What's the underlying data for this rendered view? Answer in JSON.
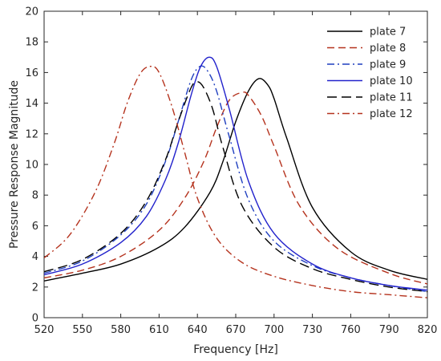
{
  "chart_data": {
    "type": "line",
    "title": "",
    "xlabel": "Frequency [Hz]",
    "ylabel": "Pressure Response Magnitude",
    "xlim": [
      520,
      820
    ],
    "ylim": [
      0,
      20
    ],
    "xticks": [
      "520",
      "550",
      "580",
      "610",
      "640",
      "670",
      "700",
      "730",
      "760",
      "790",
      "820"
    ],
    "yticks": [
      "0",
      "2",
      "4",
      "6",
      "8",
      "10",
      "12",
      "14",
      "16",
      "18",
      "20"
    ],
    "grid": false,
    "legend_position": "top-right",
    "series": [
      {
        "name": "plate 7",
        "color": "#000000",
        "dash": "solid",
        "x": [
          520,
          550,
          580,
          610,
          630,
          650,
          660,
          670,
          680,
          688,
          695,
          700,
          710,
          730,
          760,
          790,
          820
        ],
        "y": [
          2.4,
          2.9,
          3.5,
          4.6,
          5.9,
          8.2,
          10.2,
          12.8,
          14.8,
          15.6,
          15.2,
          14.3,
          11.7,
          7.2,
          4.3,
          3.1,
          2.5
        ]
      },
      {
        "name": "plate 8",
        "color": "#b5331e",
        "dash": "dash",
        "x": [
          520,
          550,
          580,
          610,
          630,
          645,
          655,
          665,
          675,
          680,
          690,
          700,
          720,
          750,
          790,
          820
        ],
        "y": [
          2.6,
          3.1,
          4.0,
          5.7,
          7.8,
          10.2,
          12.4,
          14.2,
          14.7,
          14.5,
          13.2,
          11.2,
          7.3,
          4.5,
          2.9,
          2.2
        ]
      },
      {
        "name": "plate 9",
        "color": "#1f3fbf",
        "dash": "dashdot",
        "x": [
          520,
          550,
          580,
          600,
          615,
          625,
          635,
          642,
          648,
          655,
          665,
          680,
          700,
          730,
          760,
          790,
          820
        ],
        "y": [
          2.9,
          3.7,
          5.4,
          7.4,
          10.2,
          12.8,
          15.5,
          16.4,
          16.1,
          14.8,
          11.8,
          7.7,
          5.0,
          3.4,
          2.6,
          2.1,
          1.7
        ]
      },
      {
        "name": "plate 10",
        "color": "#2222cc",
        "dash": "solid",
        "x": [
          520,
          550,
          580,
          600,
          615,
          625,
          635,
          642,
          649,
          655,
          665,
          680,
          700,
          730,
          760,
          790,
          820
        ],
        "y": [
          2.8,
          3.5,
          4.9,
          6.6,
          9.0,
          11.4,
          14.5,
          16.3,
          17.0,
          16.4,
          13.6,
          8.9,
          5.5,
          3.5,
          2.6,
          2.1,
          1.8
        ]
      },
      {
        "name": "plate 11",
        "color": "#000000",
        "dash": "longdash",
        "x": [
          520,
          550,
          580,
          600,
          615,
          625,
          635,
          640,
          645,
          652,
          660,
          675,
          700,
          730,
          760,
          790,
          820
        ],
        "y": [
          3.0,
          3.8,
          5.5,
          7.6,
          10.3,
          12.8,
          15.0,
          15.4,
          15.0,
          13.6,
          11.1,
          7.3,
          4.6,
          3.2,
          2.5,
          2.0,
          1.7
        ]
      },
      {
        "name": "plate 12",
        "color": "#b5331e",
        "dash": "dashdot",
        "x": [
          520,
          540,
          560,
          575,
          585,
          595,
          603,
          610,
          620,
          630,
          640,
          655,
          675,
          700,
          730,
          760,
          790,
          820
        ],
        "y": [
          3.9,
          5.4,
          8.2,
          11.4,
          14.0,
          15.9,
          16.4,
          16.0,
          13.8,
          10.8,
          7.8,
          5.2,
          3.6,
          2.7,
          2.1,
          1.7,
          1.5,
          1.3
        ]
      }
    ]
  }
}
